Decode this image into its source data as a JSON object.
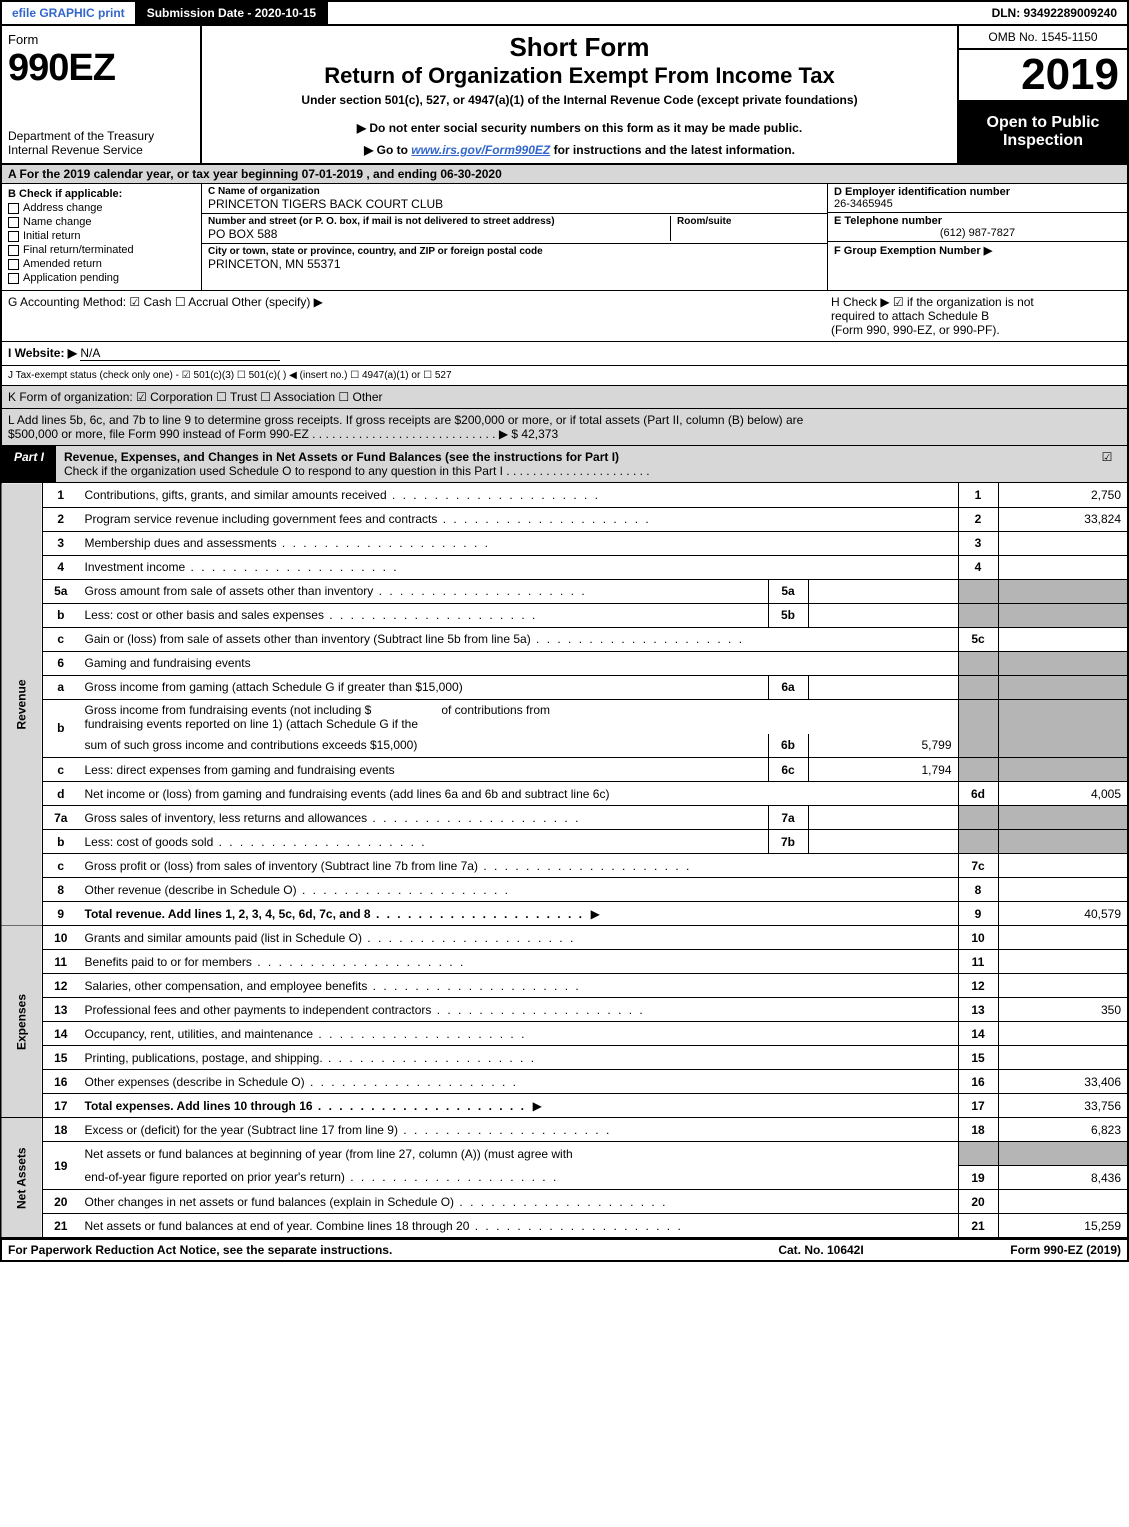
{
  "topbar": {
    "efile": "efile GRAPHIC print",
    "subdate_label": "Submission Date - 2020-10-15",
    "dln": "DLN: 93492289009240"
  },
  "header": {
    "form_word": "Form",
    "form_num": "990EZ",
    "dept1": "Department of the Treasury",
    "dept2": "Internal Revenue Service",
    "title1": "Short Form",
    "title2": "Return of Organization Exempt From Income Tax",
    "subtitle": "Under section 501(c), 527, or 4947(a)(1) of the Internal Revenue Code (except private foundations)",
    "warn": "▶ Do not enter social security numbers on this form as it may be made public.",
    "goto_pre": "▶ Go to ",
    "goto_link": "www.irs.gov/Form990EZ",
    "goto_post": " for instructions and the latest information.",
    "omb": "OMB No. 1545-1150",
    "year": "2019",
    "open": "Open to Public Inspection"
  },
  "row_a": "A  For the 2019 calendar year, or tax year beginning 07-01-2019 , and ending 06-30-2020",
  "entity": {
    "b_title": "B  Check if applicable:",
    "b_opts": [
      "Address change",
      "Name change",
      "Initial return",
      "Final return/terminated",
      "Amended return",
      "Application pending"
    ],
    "c_name_lbl": "C Name of organization",
    "c_name": "PRINCETON TIGERS BACK COURT CLUB",
    "c_addr_lbl": "Number and street (or P. O. box, if mail is not delivered to street address)",
    "c_addr": "PO BOX 588",
    "c_room_lbl": "Room/suite",
    "c_city_lbl": "City or town, state or province, country, and ZIP or foreign postal code",
    "c_city": "PRINCETON, MN  55371",
    "d_lbl": "D Employer identification number",
    "d_val": "26-3465945",
    "e_lbl": "E Telephone number",
    "e_val": "(612) 987-7827",
    "f_lbl": "F Group Exemption Number  ▶"
  },
  "ghij": {
    "g": "G Accounting Method:   ☑ Cash  ☐ Accrual   Other (specify) ▶",
    "h1": "H  Check ▶  ☑  if the organization is not",
    "h2": "required to attach Schedule B",
    "h3": "(Form 990, 990-EZ, or 990-PF).",
    "i_lbl": "I Website: ▶",
    "i_val": "N/A",
    "j": "J Tax-exempt status (check only one) -  ☑ 501(c)(3)  ☐  501(c)(   ) ◀ (insert no.)  ☐  4947(a)(1) or  ☐  527",
    "k": "K Form of organization:   ☑ Corporation   ☐ Trust   ☐ Association   ☐ Other",
    "l1": "L Add lines 5b, 6c, and 7b to line 9 to determine gross receipts. If gross receipts are $200,000 or more, or if total assets (Part II, column (B) below) are",
    "l2": "$500,000 or more, file Form 990 instead of Form 990-EZ . . . . . . . . . . . . . . . . . . . . . . . . . . . .   ▶ $ 42,373"
  },
  "part1": {
    "tag": "Part I",
    "title": "Revenue, Expenses, and Changes in Net Assets or Fund Balances (see the instructions for Part I)",
    "sub": "Check if the organization used Schedule O to respond to any question in this Part I . . . . . . . . . . . . . . . . . . . . . .",
    "chk": "☑"
  },
  "section_labels": {
    "revenue": "Revenue",
    "expenses": "Expenses",
    "netassets": "Net Assets"
  },
  "lines": {
    "l1": {
      "n": "1",
      "t": "Contributions, gifts, grants, and similar amounts received",
      "rn": "1",
      "rv": "2,750"
    },
    "l2": {
      "n": "2",
      "t": "Program service revenue including government fees and contracts",
      "rn": "2",
      "rv": "33,824"
    },
    "l3": {
      "n": "3",
      "t": "Membership dues and assessments",
      "rn": "3",
      "rv": ""
    },
    "l4": {
      "n": "4",
      "t": "Investment income",
      "rn": "4",
      "rv": ""
    },
    "l5a": {
      "n": "5a",
      "t": "Gross amount from sale of assets other than inventory",
      "mn": "5a",
      "mv": ""
    },
    "l5b": {
      "n": "b",
      "t": "Less: cost or other basis and sales expenses",
      "mn": "5b",
      "mv": ""
    },
    "l5c": {
      "n": "c",
      "t": "Gain or (loss) from sale of assets other than inventory (Subtract line 5b from line 5a)",
      "rn": "5c",
      "rv": ""
    },
    "l6": {
      "n": "6",
      "t": "Gaming and fundraising events"
    },
    "l6a": {
      "n": "a",
      "t": "Gross income from gaming (attach Schedule G if greater than $15,000)",
      "mn": "6a",
      "mv": ""
    },
    "l6b": {
      "n": "b",
      "t1": "Gross income from fundraising events (not including $",
      "t2": " of contributions from",
      "t3": "fundraising events reported on line 1) (attach Schedule G if the",
      "t4": "sum of such gross income and contributions exceeds $15,000)",
      "mn": "6b",
      "mv": "5,799"
    },
    "l6c": {
      "n": "c",
      "t": "Less: direct expenses from gaming and fundraising events",
      "mn": "6c",
      "mv": "1,794"
    },
    "l6d": {
      "n": "d",
      "t": "Net income or (loss) from gaming and fundraising events (add lines 6a and 6b and subtract line 6c)",
      "rn": "6d",
      "rv": "4,005"
    },
    "l7a": {
      "n": "7a",
      "t": "Gross sales of inventory, less returns and allowances",
      "mn": "7a",
      "mv": ""
    },
    "l7b": {
      "n": "b",
      "t": "Less: cost of goods sold",
      "mn": "7b",
      "mv": ""
    },
    "l7c": {
      "n": "c",
      "t": "Gross profit or (loss) from sales of inventory (Subtract line 7b from line 7a)",
      "rn": "7c",
      "rv": ""
    },
    "l8": {
      "n": "8",
      "t": "Other revenue (describe in Schedule O)",
      "rn": "8",
      "rv": ""
    },
    "l9": {
      "n": "9",
      "t": "Total revenue. Add lines 1, 2, 3, 4, 5c, 6d, 7c, and 8",
      "rn": "9",
      "rv": "40,579",
      "bold": true
    },
    "l10": {
      "n": "10",
      "t": "Grants and similar amounts paid (list in Schedule O)",
      "rn": "10",
      "rv": ""
    },
    "l11": {
      "n": "11",
      "t": "Benefits paid to or for members",
      "rn": "11",
      "rv": ""
    },
    "l12": {
      "n": "12",
      "t": "Salaries, other compensation, and employee benefits",
      "rn": "12",
      "rv": ""
    },
    "l13": {
      "n": "13",
      "t": "Professional fees and other payments to independent contractors",
      "rn": "13",
      "rv": "350"
    },
    "l14": {
      "n": "14",
      "t": "Occupancy, rent, utilities, and maintenance",
      "rn": "14",
      "rv": ""
    },
    "l15": {
      "n": "15",
      "t": "Printing, publications, postage, and shipping.",
      "rn": "15",
      "rv": ""
    },
    "l16": {
      "n": "16",
      "t": "Other expenses (describe in Schedule O)",
      "rn": "16",
      "rv": "33,406"
    },
    "l17": {
      "n": "17",
      "t": "Total expenses. Add lines 10 through 16",
      "rn": "17",
      "rv": "33,756",
      "bold": true
    },
    "l18": {
      "n": "18",
      "t": "Excess or (deficit) for the year (Subtract line 17 from line 9)",
      "rn": "18",
      "rv": "6,823"
    },
    "l19": {
      "n": "19",
      "t1": "Net assets or fund balances at beginning of year (from line 27, column (A)) (must agree with",
      "t2": "end-of-year figure reported on prior year's return)",
      "rn": "19",
      "rv": "8,436"
    },
    "l20": {
      "n": "20",
      "t": "Other changes in net assets or fund balances (explain in Schedule O)",
      "rn": "20",
      "rv": ""
    },
    "l21": {
      "n": "21",
      "t": "Net assets or fund balances at end of year. Combine lines 18 through 20",
      "rn": "21",
      "rv": "15,259"
    }
  },
  "footer": {
    "l": "For Paperwork Reduction Act Notice, see the separate instructions.",
    "m": "Cat. No. 10642I",
    "r": "Form 990-EZ (2019)"
  },
  "colors": {
    "shade": "#d7d7d7",
    "darkshade": "#b5b5b5",
    "link": "#3366cc"
  }
}
